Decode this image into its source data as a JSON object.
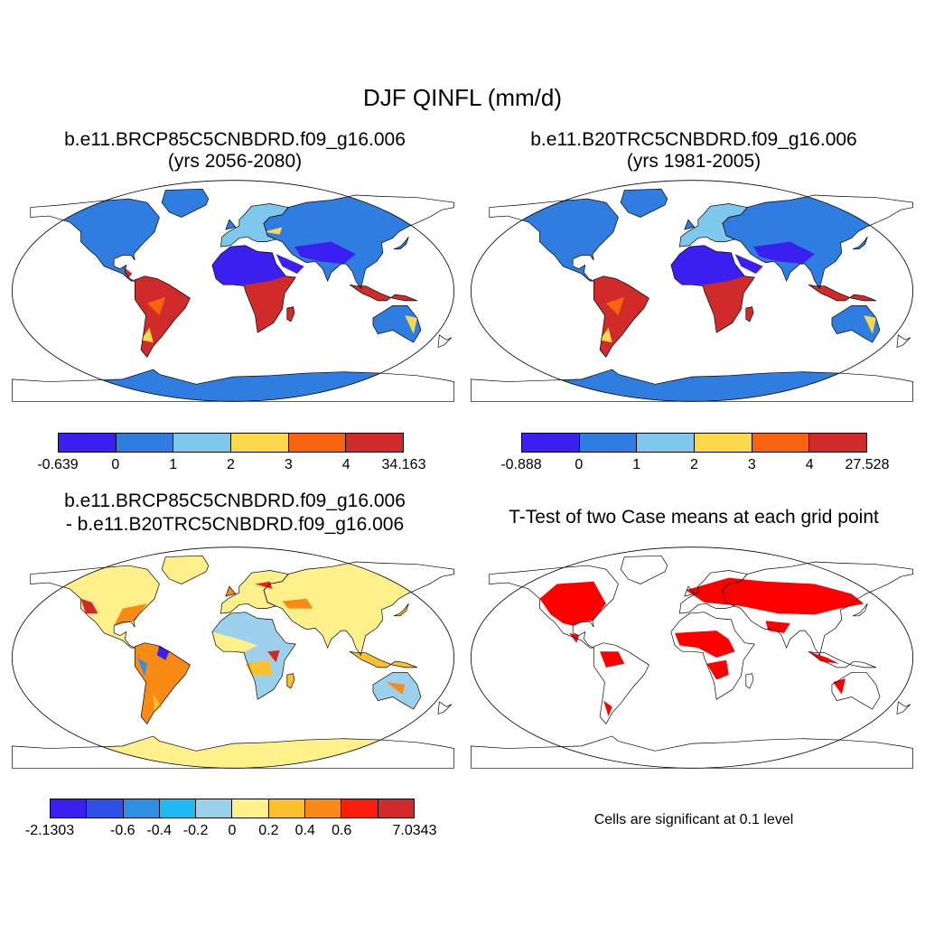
{
  "figure": {
    "title": "DJF QINFL (mm/d)"
  },
  "panels": {
    "future": {
      "title_line1": "b.e11.BRCP85C5CNBDRD.f09_g16.006",
      "title_line2": "(yrs 2056-2080)"
    },
    "historical": {
      "title_line1": "b.e11.B20TRC5CNBDRD.f09_g16.006",
      "title_line2": "(yrs 1981-2005)"
    },
    "difference": {
      "title_line1": "b.e11.BRCP85C5CNBDRD.f09_g16.006",
      "title_line2": "- b.e11.B20TRC5CNBDRD.f09_g16.006"
    },
    "ttest": {
      "title": "T-Test of two Case means at each grid point",
      "note": "Cells are significant at 0.1 level"
    }
  },
  "colorbars": {
    "future": {
      "colors": [
        "#3a1ff0",
        "#2f7de1",
        "#7ec8ee",
        "#fbd84a",
        "#f7630e",
        "#d02a2a"
      ],
      "labels": [
        "-0.639",
        "0",
        "1",
        "2",
        "3",
        "4",
        "34.163"
      ]
    },
    "historical": {
      "colors": [
        "#3a1ff0",
        "#2f7de1",
        "#7ec8ee",
        "#fbd84a",
        "#f7630e",
        "#d02a2a"
      ],
      "labels": [
        "-0.888",
        "0",
        "1",
        "2",
        "3",
        "4",
        "27.528"
      ]
    },
    "difference": {
      "colors": [
        "#3a1ff0",
        "#2f50e6",
        "#2f8ee6",
        "#1fbaf2",
        "#9dd0ec",
        "#fdf08a",
        "#fbc02e",
        "#f98a16",
        "#fb1d0c",
        "#d22a2a"
      ],
      "labels": [
        "-2.1303",
        "",
        "-0.6",
        "-0.4",
        "-0.2",
        "0",
        "0.2",
        "0.4",
        "0.6",
        "",
        "7.0343"
      ]
    }
  },
  "colors": {
    "ocean": "#ffffff",
    "significant": "#ff0000"
  }
}
